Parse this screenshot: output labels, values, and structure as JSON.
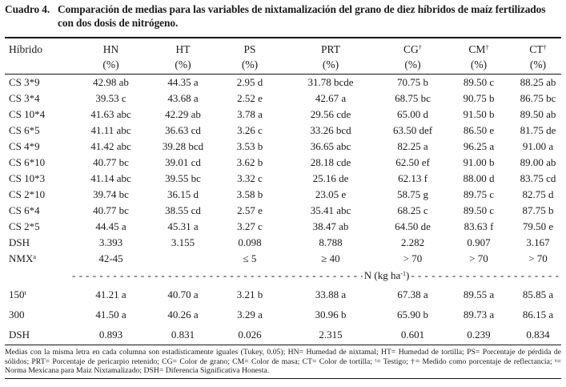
{
  "title": {
    "label": "Cuadro 4.",
    "text": "Comparación de medias para las variables de nixtamalización del grano de diez híbridos de maíz fertilizados con dos dosis de nitrógeno."
  },
  "table": {
    "columns": [
      {
        "label": "Híbrido",
        "sup": "",
        "unit": ""
      },
      {
        "label": "HN",
        "sup": "",
        "unit": "(%)"
      },
      {
        "label": "HT",
        "sup": "",
        "unit": "(%)"
      },
      {
        "label": "PS",
        "sup": "",
        "unit": "(%)"
      },
      {
        "label": "PRT",
        "sup": "",
        "unit": "(%)"
      },
      {
        "label": "CG",
        "sup": "†",
        "unit": "(%)"
      },
      {
        "label": "CM",
        "sup": "†",
        "unit": "(%)"
      },
      {
        "label": "CT",
        "sup": "†",
        "unit": "(%)"
      }
    ],
    "upper_rows": [
      {
        "name": "CS 3*9",
        "sup": "",
        "values": [
          "42.98 ab",
          "44.35 a",
          "2.95 d",
          "31.78 bcde",
          "70.75 b",
          "89.50 c",
          "88.25 ab"
        ]
      },
      {
        "name": "CS 3*4",
        "sup": "",
        "values": [
          "39.53 c",
          "43.68 a",
          "2.52 e",
          "42.67 a",
          "68.75 bc",
          "90.75 b",
          "86.75 bc"
        ]
      },
      {
        "name": "CS 10*4",
        "sup": "",
        "values": [
          "41.63 abc",
          "42.29  ab",
          "3.78 a",
          "29.56 cde",
          "65.00 d",
          "91.50 b",
          "89.50 ab"
        ]
      },
      {
        "name": "CS 6*5",
        "sup": "",
        "values": [
          "41.11 abc",
          "36.63 cd",
          "3.26 c",
          "33.26 bcd",
          "63.50 def",
          "86.50 e",
          "81.75 de"
        ]
      },
      {
        "name": "CS 4*9",
        "sup": "",
        "values": [
          "41.42 abc",
          "39.28 bcd",
          "3.53 b",
          "36.65 abc",
          "82.25 a",
          "96.25 a",
          "91.00 a"
        ]
      },
      {
        "name": "CS 6*10",
        "sup": "",
        "values": [
          "40.77 bc",
          "39.01 cd",
          "3.62 b",
          "28.18 cde",
          "62.50 ef",
          "91.00 b",
          "89.00 ab"
        ]
      },
      {
        "name": "CS 10*3",
        "sup": "",
        "values": [
          "41.14 abc",
          "39.55 bc",
          "3.32 c",
          "25.16 de",
          "62.13 f",
          "88.00 d",
          "83.75 cd"
        ]
      },
      {
        "name": "CS 2*10",
        "sup": "",
        "values": [
          "39.74 bc",
          "36.15 d",
          "3.58 b",
          "23.05 e",
          "58.75 g",
          "89.75 c",
          "82.75 d"
        ]
      },
      {
        "name": "CS 6*4",
        "sup": "",
        "values": [
          "40.77 bc",
          "38.55 cd",
          "2.57 e",
          "35.41 abc",
          "68.25 c",
          "89.50 c",
          "87.75 b"
        ]
      },
      {
        "name": "CS 2*5",
        "sup": "",
        "values": [
          "44.45 a",
          "45.31 a",
          "3.27 c",
          "38.47 ab",
          "64.50 de",
          "83.63 f",
          "79.50 e"
        ]
      },
      {
        "name": "DSH",
        "sup": "",
        "values": [
          "3.393",
          "3.155",
          "0.098",
          "8.788",
          "2.282",
          "0.907",
          "3.167"
        ]
      },
      {
        "name": "NMX",
        "sup": "a",
        "values": [
          "42-45",
          "",
          "≤ 5",
          "≥ 40",
          "> 70",
          "> 70",
          "> 70"
        ]
      }
    ],
    "separator": {
      "pre": "N (kg ha",
      "sup": "-1",
      "post": ")",
      "dash": "- "
    },
    "lower_rows": [
      {
        "name": "150",
        "sup": "t",
        "values": [
          "41.21 a",
          "40.70 a",
          "3.21 b",
          "33.88 a",
          "67.38 a",
          "89.55 a",
          "85.85 a"
        ]
      },
      {
        "name": "300",
        "sup": "",
        "values": [
          "41.50 a",
          "40.26 a",
          "3.29 a",
          "30.96 b",
          "65.90 b",
          "89.73 a",
          "86.15 a"
        ]
      },
      {
        "name": "DSH",
        "sup": "",
        "values": [
          "0.893",
          "0.831",
          "0.026",
          "2.315",
          "0.601",
          "0.239",
          "0.834"
        ]
      }
    ],
    "footnote": "Medias con la misma letra en cada columna son estadísticamente iguales (Tukey, 0.05); HN= Humedad de nixtamal; HT= Humedad de tortilla; PS= Porcentaje de pérdida de sólidos; PRT= Porcentaje de pericarpio retenido; CG= Color de grano; CM= Color de masa; CT= Color de tortilla; ᵗ= Testigo; †= Medido como porcentaje de reflectancia; ᵃ= Norma Mexicana para Maiz Nixtamalizado; DSH= Diferencia Significativa Honesta."
  }
}
